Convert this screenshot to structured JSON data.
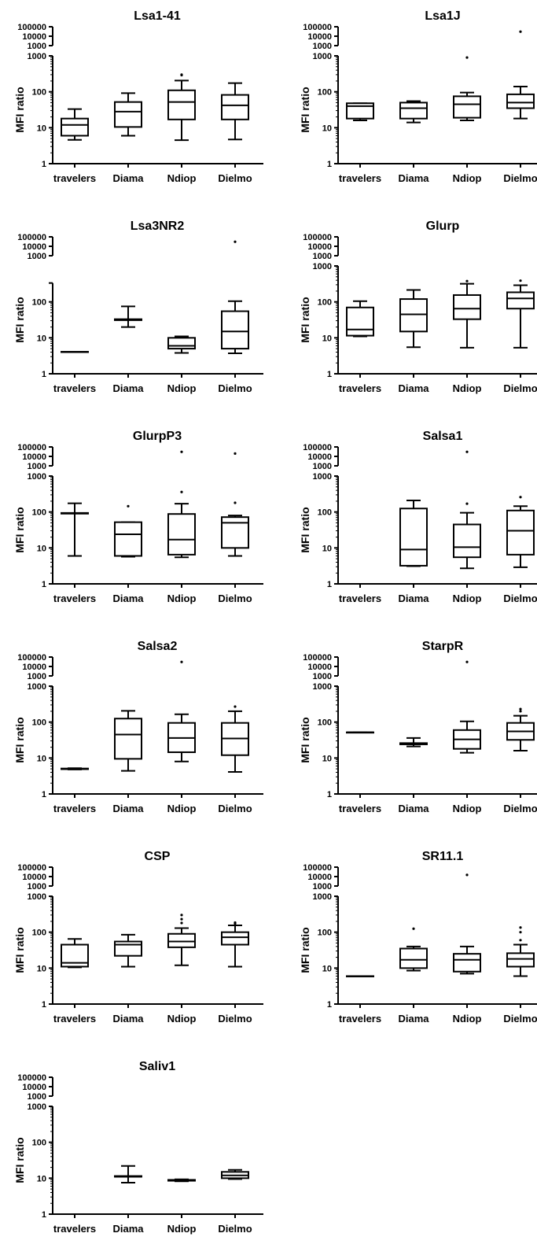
{
  "chart_data": [
    {
      "type": "box",
      "title": "Lsa1-41",
      "ylabel": "MFI ratio",
      "yscale": "log",
      "ytick_labels_lower": [
        "1",
        "10",
        "100",
        "1000"
      ],
      "ytick_labels_upper": [
        "1000",
        "10000",
        "100000"
      ],
      "categories": [
        "travelers",
        "Diama",
        "Ndiop",
        "Dielmo"
      ],
      "boxes": [
        {
          "min": 4.6,
          "q1": 6,
          "median": 12,
          "q3": 18,
          "max": 33,
          "outliers": []
        },
        {
          "min": 6,
          "q1": 10.5,
          "median": 28,
          "q3": 52,
          "max": 92,
          "outliers": []
        },
        {
          "min": 4.5,
          "q1": 17,
          "median": 52,
          "q3": 110,
          "max": 205,
          "outliers": [
            290,
            300
          ]
        },
        {
          "min": 4.7,
          "q1": 17,
          "median": 42,
          "q3": 82,
          "max": 175,
          "outliers": []
        }
      ]
    },
    {
      "type": "box",
      "title": "Lsa1J",
      "ylabel": "MFI ratio",
      "yscale": "log",
      "ytick_labels_lower": [
        "1",
        "10",
        "100",
        "1000"
      ],
      "ytick_labels_upper": [
        "1000",
        "10000",
        "100000"
      ],
      "categories": [
        "travelers",
        "Diama",
        "Ndiop",
        "Dielmo"
      ],
      "boxes": [
        {
          "min": 16,
          "q1": 18,
          "median": 40,
          "q3": 48,
          "max": 48,
          "outliers": []
        },
        {
          "min": 14,
          "q1": 18,
          "median": 35,
          "q3": 50,
          "max": 55,
          "outliers": []
        },
        {
          "min": 16,
          "q1": 19,
          "median": 45,
          "q3": 75,
          "max": 95,
          "outliers": [
            900
          ]
        },
        {
          "min": 18,
          "q1": 35,
          "median": 50,
          "q3": 85,
          "max": 140,
          "outliers": [
            30000
          ]
        }
      ]
    },
    {
      "type": "box",
      "title": "Lsa3NR2",
      "ylabel": "MFI ratio",
      "yscale": "log",
      "ytick_labels_lower": [
        "1",
        "10",
        "100"
      ],
      "ytick_labels_upper": [
        "1000",
        "10000",
        "100000"
      ],
      "categories": [
        "travelers",
        "Diama",
        "Ndiop",
        "Dielmo"
      ],
      "boxes": [
        {
          "min": 4.1,
          "q1": 4.1,
          "median": 4.1,
          "q3": 4.1,
          "max": 4.1,
          "outliers": []
        },
        {
          "min": 20,
          "q1": 31,
          "median": 32,
          "q3": 33,
          "max": 75,
          "outliers": []
        },
        {
          "min": 3.8,
          "q1": 5,
          "median": 6,
          "q3": 10,
          "max": 11,
          "outliers": []
        },
        {
          "min": 3.7,
          "q1": 5,
          "median": 15,
          "q3": 55,
          "max": 105,
          "outliers": [
            30000
          ]
        }
      ]
    },
    {
      "type": "box",
      "title": "Glurp",
      "ylabel": "MFI ratio",
      "yscale": "log",
      "ytick_labels_lower": [
        "1",
        "10",
        "100",
        "1000"
      ],
      "ytick_labels_upper": [
        "1000",
        "10000",
        "100000"
      ],
      "categories": [
        "travelers",
        "Diama",
        "Ndiop",
        "Dielmo"
      ],
      "boxes": [
        {
          "min": 11,
          "q1": 11.5,
          "median": 17,
          "q3": 70,
          "max": 105,
          "outliers": []
        },
        {
          "min": 5.5,
          "q1": 15,
          "median": 45,
          "q3": 120,
          "max": 215,
          "outliers": []
        },
        {
          "min": 5.3,
          "q1": 33,
          "median": 65,
          "q3": 155,
          "max": 320,
          "outliers": [
            380
          ]
        },
        {
          "min": 5.3,
          "q1": 65,
          "median": 125,
          "q3": 185,
          "max": 290,
          "outliers": [
            390
          ]
        }
      ]
    },
    {
      "type": "box",
      "title": "GlurpP3",
      "ylabel": "MFI ratio",
      "yscale": "log",
      "ytick_labels_lower": [
        "1",
        "10",
        "100",
        "1000"
      ],
      "ytick_labels_upper": [
        "1000",
        "10000",
        "100000"
      ],
      "categories": [
        "travelers",
        "Diama",
        "Ndiop",
        "Dielmo"
      ],
      "boxes": [
        {
          "min": 6,
          "q1": 90,
          "median": 92,
          "q3": 94,
          "max": 175,
          "outliers": []
        },
        {
          "min": 5.7,
          "q1": 6,
          "median": 24,
          "q3": 52,
          "max": 52,
          "outliers": [
            145
          ]
        },
        {
          "min": 5.5,
          "q1": 6.5,
          "median": 17,
          "q3": 88,
          "max": 170,
          "outliers": [
            360,
            30000
          ]
        },
        {
          "min": 6,
          "q1": 10,
          "median": 50,
          "q3": 72,
          "max": 80,
          "outliers": [
            180,
            20000
          ]
        }
      ]
    },
    {
      "type": "box",
      "title": "Salsa1",
      "ylabel": "MFI ratio",
      "yscale": "log",
      "ytick_labels_lower": [
        "1",
        "10",
        "100",
        "1000"
      ],
      "ytick_labels_upper": [
        "1000",
        "10000",
        "100000"
      ],
      "categories": [
        "travelers",
        "Diama",
        "Ndiop",
        "Dielmo"
      ],
      "boxes": [
        null,
        {
          "min": 3.1,
          "q1": 3.2,
          "median": 9,
          "q3": 125,
          "max": 210,
          "outliers": []
        },
        {
          "min": 2.7,
          "q1": 5.5,
          "median": 10.5,
          "q3": 45,
          "max": 95,
          "outliers": [
            170,
            30000
          ]
        },
        {
          "min": 2.9,
          "q1": 6.5,
          "median": 30,
          "q3": 110,
          "max": 145,
          "outliers": [
            260
          ]
        }
      ]
    },
    {
      "type": "box",
      "title": "Salsa2",
      "ylabel": "MFI ratio",
      "yscale": "log",
      "ytick_labels_lower": [
        "1",
        "10",
        "100",
        "1000"
      ],
      "ytick_labels_upper": [
        "1000",
        "10000",
        "100000"
      ],
      "categories": [
        "travelers",
        "Diama",
        "Ndiop",
        "Dielmo"
      ],
      "boxes": [
        {
          "min": 4.8,
          "q1": 4.9,
          "median": 5,
          "q3": 5.1,
          "max": 5.2,
          "outliers": []
        },
        {
          "min": 4.4,
          "q1": 9.5,
          "median": 45,
          "q3": 125,
          "max": 205,
          "outliers": []
        },
        {
          "min": 8,
          "q1": 14.5,
          "median": 36,
          "q3": 95,
          "max": 165,
          "outliers": [
            30000
          ]
        },
        {
          "min": 4.1,
          "q1": 12,
          "median": 35,
          "q3": 95,
          "max": 200,
          "outliers": [
            270
          ]
        }
      ]
    },
    {
      "type": "box",
      "title": "StarpR",
      "ylabel": "MFI ratio",
      "yscale": "log",
      "ytick_labels_lower": [
        "1",
        "10",
        "100",
        "1000"
      ],
      "ytick_labels_upper": [
        "1000",
        "10000",
        "100000"
      ],
      "categories": [
        "travelers",
        "Diama",
        "Ndiop",
        "Dielmo"
      ],
      "boxes": [
        {
          "min": 52,
          "q1": 52,
          "median": 52,
          "q3": 52,
          "max": 52,
          "outliers": []
        },
        {
          "min": 21,
          "q1": 24,
          "median": 25,
          "q3": 26,
          "max": 36,
          "outliers": []
        },
        {
          "min": 14,
          "q1": 18,
          "median": 33,
          "q3": 60,
          "max": 105,
          "outliers": [
            30000
          ]
        },
        {
          "min": 16,
          "q1": 32,
          "median": 55,
          "q3": 95,
          "max": 150,
          "outliers": [
            200,
            230
          ]
        }
      ]
    },
    {
      "type": "box",
      "title": "CSP",
      "ylabel": "MFI ratio",
      "yscale": "log",
      "ytick_labels_lower": [
        "1",
        "10",
        "100",
        "1000"
      ],
      "ytick_labels_upper": [
        "1000",
        "10000",
        "100000"
      ],
      "categories": [
        "travelers",
        "Diama",
        "Ndiop",
        "Dielmo"
      ],
      "boxes": [
        {
          "min": 10.5,
          "q1": 11,
          "median": 14,
          "q3": 45,
          "max": 65,
          "outliers": []
        },
        {
          "min": 11,
          "q1": 22,
          "median": 45,
          "q3": 55,
          "max": 85,
          "outliers": []
        },
        {
          "min": 12,
          "q1": 38,
          "median": 55,
          "q3": 90,
          "max": 130,
          "outliers": [
            180,
            230,
            300
          ]
        },
        {
          "min": 11,
          "q1": 45,
          "median": 72,
          "q3": 100,
          "max": 155,
          "outliers": [
            175,
            185
          ]
        }
      ]
    },
    {
      "type": "box",
      "title": "SR11.1",
      "ylabel": "MFI ratio",
      "yscale": "log",
      "ytick_labels_lower": [
        "1",
        "10",
        "100",
        "1000"
      ],
      "ytick_labels_upper": [
        "1000",
        "10000",
        "100000"
      ],
      "categories": [
        "travelers",
        "Diama",
        "Ndiop",
        "Dielmo"
      ],
      "boxes": [
        {
          "min": 6,
          "q1": 6,
          "median": 6,
          "q3": 6,
          "max": 6,
          "outliers": []
        },
        {
          "min": 8.5,
          "q1": 10,
          "median": 17,
          "q3": 35,
          "max": 40,
          "outliers": [
            125
          ]
        },
        {
          "min": 7,
          "q1": 8,
          "median": 17,
          "q3": 25,
          "max": 40,
          "outliers": [
            15000
          ]
        },
        {
          "min": 6,
          "q1": 11,
          "median": 18,
          "q3": 26,
          "max": 45,
          "outliers": [
            60,
            100,
            135
          ]
        }
      ]
    },
    {
      "type": "box",
      "title": "Saliv1",
      "ylabel": "MFI ratio",
      "yscale": "log",
      "ytick_labels_lower": [
        "1",
        "10",
        "100",
        "1000"
      ],
      "ytick_labels_upper": [
        "1000",
        "10000",
        "100000"
      ],
      "categories": [
        "travelers",
        "Diama",
        "Ndiop",
        "Dielmo"
      ],
      "boxes": [
        null,
        {
          "min": 7.5,
          "q1": 11,
          "median": 11,
          "q3": 11.5,
          "max": 22,
          "outliers": []
        },
        {
          "min": 8.2,
          "q1": 8.5,
          "median": 8.8,
          "q3": 9,
          "max": 9.3,
          "outliers": []
        },
        {
          "min": 9.5,
          "q1": 10,
          "median": 12,
          "q3": 15,
          "max": 17,
          "outliers": []
        }
      ]
    }
  ]
}
